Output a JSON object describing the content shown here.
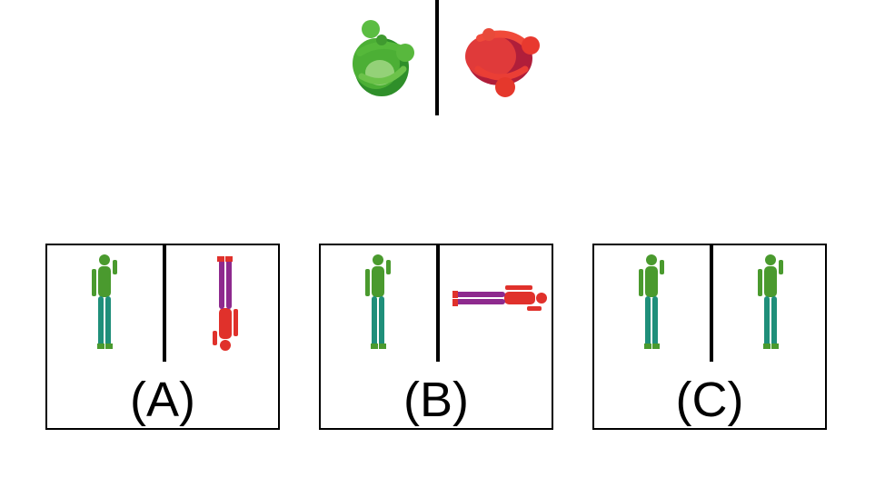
{
  "reference": {
    "left_color": "#3aa12e",
    "right_color": "#d62828"
  },
  "options": [
    {
      "label": "(A)",
      "left_pose": "upright",
      "right_pose": "inverted"
    },
    {
      "label": "(B)",
      "left_pose": "upright",
      "right_pose": "horizontal"
    },
    {
      "label": "(C)",
      "left_pose": "upright",
      "right_pose": "upright"
    }
  ],
  "colors": {
    "green_body": "#3f8f2a",
    "teal_legs": "#1f8f7a",
    "red_body": "#e0312b",
    "purple_legs": "#8e2a8e",
    "divider": "#000000"
  }
}
